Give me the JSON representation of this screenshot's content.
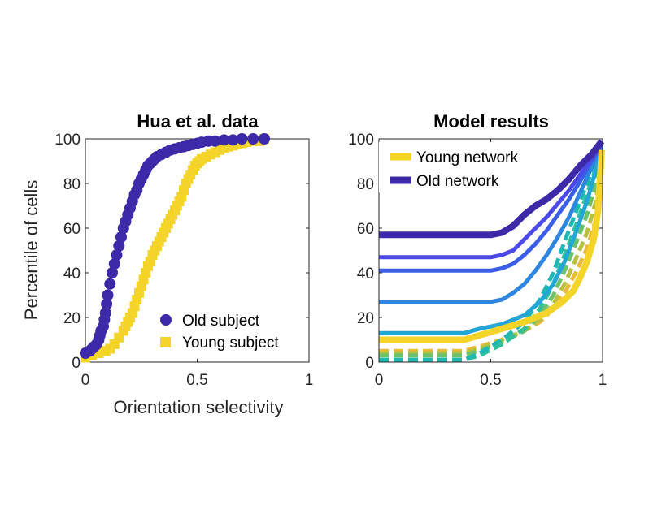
{
  "chart_data": [
    {
      "type": "scatter",
      "title": "Hua et al. data",
      "xlabel": "Orientation selectivity",
      "ylabel": "Percentile of cells",
      "xlim": [
        0,
        1
      ],
      "ylim": [
        0,
        100
      ],
      "xticks": [
        "0",
        "0.5",
        "1"
      ],
      "yticks": [
        "0",
        "20",
        "40",
        "60",
        "80",
        "100"
      ],
      "grid": false,
      "legend_position": "bottom-right",
      "series": [
        {
          "name": "Old subject",
          "marker": "circle",
          "color": "#3c2aa8",
          "x": [
            0.0,
            0.02,
            0.03,
            0.04,
            0.05,
            0.06,
            0.065,
            0.07,
            0.08,
            0.085,
            0.09,
            0.095,
            0.1,
            0.11,
            0.12,
            0.13,
            0.14,
            0.15,
            0.16,
            0.17,
            0.18,
            0.19,
            0.2,
            0.21,
            0.22,
            0.23,
            0.24,
            0.25,
            0.26,
            0.27,
            0.28,
            0.29,
            0.3,
            0.31,
            0.32,
            0.34,
            0.36,
            0.38,
            0.4,
            0.42,
            0.44,
            0.46,
            0.48,
            0.5,
            0.52,
            0.55,
            0.58,
            0.62,
            0.66,
            0.7,
            0.75,
            0.8
          ],
          "y": [
            4,
            5,
            6,
            7,
            8,
            10,
            12,
            14,
            16,
            19,
            22,
            26,
            30,
            35,
            40,
            44,
            48,
            52,
            56,
            60,
            63,
            66,
            69,
            72,
            75,
            77,
            80,
            82,
            84,
            86,
            88,
            89,
            90,
            91,
            92,
            93,
            94,
            95,
            95.5,
            96,
            96.5,
            97,
            97.5,
            98,
            98.5,
            99,
            99,
            99.5,
            99.5,
            100,
            100,
            100
          ]
        },
        {
          "name": "Young subject",
          "marker": "square",
          "color": "#f5d42a",
          "x": [
            0.0,
            0.03,
            0.06,
            0.09,
            0.11,
            0.13,
            0.15,
            0.17,
            0.18,
            0.19,
            0.2,
            0.21,
            0.22,
            0.23,
            0.24,
            0.25,
            0.26,
            0.27,
            0.28,
            0.29,
            0.3,
            0.31,
            0.32,
            0.33,
            0.34,
            0.35,
            0.36,
            0.37,
            0.38,
            0.39,
            0.4,
            0.41,
            0.42,
            0.43,
            0.44,
            0.45,
            0.46,
            0.47,
            0.48,
            0.49,
            0.5,
            0.51,
            0.52,
            0.54,
            0.56,
            0.58,
            0.6,
            0.62,
            0.64,
            0.66,
            0.68,
            0.7,
            0.72,
            0.75,
            0.78,
            0.8
          ],
          "y": [
            2,
            3,
            4,
            5,
            6,
            8,
            11,
            14,
            16,
            18,
            20,
            22,
            25,
            28,
            31,
            34,
            37,
            40,
            43,
            45,
            48,
            50,
            52,
            54,
            56,
            58,
            60,
            62,
            64,
            66,
            68,
            70,
            72,
            74,
            77,
            80,
            82,
            84,
            86,
            88,
            89,
            90,
            91,
            92,
            93,
            94,
            95,
            96,
            96.5,
            97,
            97.5,
            98,
            98.5,
            99,
            99,
            100
          ]
        }
      ]
    },
    {
      "type": "line",
      "title": "Model results",
      "xlabel": "",
      "ylabel": "",
      "xlim": [
        0,
        1
      ],
      "ylim": [
        0,
        100
      ],
      "xticks": [
        "0",
        "0.5",
        "1"
      ],
      "yticks": [
        "0",
        "20",
        "40",
        "60",
        "80",
        "100"
      ],
      "grid": false,
      "legend_position": "top-left",
      "series": [
        {
          "name": "Young network",
          "color": "#f5d42a",
          "dash": "solid",
          "x": [
            0,
            0.38,
            0.45,
            0.55,
            0.65,
            0.75,
            0.82,
            0.87,
            0.9,
            0.93,
            0.96,
            0.98,
            1.0
          ],
          "y": [
            10,
            10,
            12,
            15,
            18,
            22,
            27,
            32,
            38,
            45,
            55,
            68,
            95
          ]
        },
        {
          "name": "Old network",
          "color": "#3c2aa8",
          "dash": "solid",
          "x": [
            0,
            0.5,
            0.55,
            0.6,
            0.65,
            0.7,
            0.75,
            0.8,
            0.85,
            0.9,
            0.95,
            1.0
          ],
          "y": [
            57,
            57,
            58,
            61,
            66,
            70,
            73,
            77,
            82,
            88,
            93,
            99
          ]
        },
        {
          "color": "#4b49e8",
          "dash": "solid",
          "x": [
            0,
            0.5,
            0.55,
            0.6,
            0.65,
            0.7,
            0.75,
            0.8,
            0.85,
            0.9,
            0.95,
            1.0
          ],
          "y": [
            47,
            47,
            48,
            50,
            55,
            60,
            65,
            71,
            77,
            84,
            91,
            98
          ]
        },
        {
          "color": "#3a5ee8",
          "dash": "solid",
          "x": [
            0,
            0.5,
            0.55,
            0.6,
            0.65,
            0.7,
            0.75,
            0.8,
            0.85,
            0.9,
            0.95,
            1.0
          ],
          "y": [
            41,
            41,
            42,
            44,
            48,
            53,
            59,
            66,
            73,
            81,
            90,
            97
          ]
        },
        {
          "color": "#2e86e0",
          "dash": "solid",
          "x": [
            0,
            0.5,
            0.55,
            0.6,
            0.65,
            0.7,
            0.75,
            0.8,
            0.85,
            0.9,
            0.95,
            1.0
          ],
          "y": [
            27,
            27,
            28,
            31,
            35,
            41,
            48,
            56,
            65,
            76,
            87,
            97
          ]
        },
        {
          "color": "#22a6d6",
          "dash": "solid",
          "x": [
            0,
            0.38,
            0.45,
            0.55,
            0.65,
            0.72,
            0.78,
            0.83,
            0.88,
            0.93,
            0.97,
            1.0
          ],
          "y": [
            13,
            13,
            15,
            17,
            21,
            27,
            35,
            45,
            58,
            72,
            86,
            96
          ]
        },
        {
          "color": "#1fb8b4",
          "dash": "dashed",
          "x": [
            0,
            0.38,
            0.45,
            0.55,
            0.65,
            0.72,
            0.78,
            0.83,
            0.88,
            0.93,
            0.97,
            1.0
          ],
          "y": [
            1,
            1,
            4,
            10,
            18,
            28,
            40,
            54,
            67,
            80,
            90,
            97
          ]
        },
        {
          "color": "#2ec09a",
          "dash": "dashed",
          "x": [
            0,
            0.38,
            0.45,
            0.55,
            0.65,
            0.72,
            0.78,
            0.83,
            0.88,
            0.93,
            0.97,
            1.0
          ],
          "y": [
            1,
            1,
            3,
            8,
            15,
            24,
            35,
            48,
            61,
            75,
            87,
            96
          ]
        },
        {
          "color": "#6cc26a",
          "dash": "dashed",
          "x": [
            0,
            0.38,
            0.45,
            0.55,
            0.65,
            0.72,
            0.78,
            0.83,
            0.88,
            0.93,
            0.97,
            1.0
          ],
          "y": [
            3,
            3,
            5,
            9,
            14,
            21,
            30,
            41,
            53,
            66,
            80,
            94
          ]
        },
        {
          "color": "#b8c043",
          "dash": "dashed",
          "x": [
            0,
            0.38,
            0.45,
            0.55,
            0.65,
            0.72,
            0.78,
            0.83,
            0.88,
            0.93,
            0.97,
            1.0
          ],
          "y": [
            4,
            4,
            6,
            10,
            14,
            19,
            26,
            35,
            46,
            58,
            72,
            90
          ]
        },
        {
          "color": "#eabb3a",
          "dash": "dashed",
          "x": [
            0,
            0.38,
            0.45,
            0.55,
            0.65,
            0.72,
            0.78,
            0.83,
            0.88,
            0.93,
            0.97,
            1.0
          ],
          "y": [
            5,
            5,
            7,
            10,
            14,
            18,
            24,
            31,
            40,
            51,
            64,
            85
          ]
        }
      ]
    }
  ]
}
